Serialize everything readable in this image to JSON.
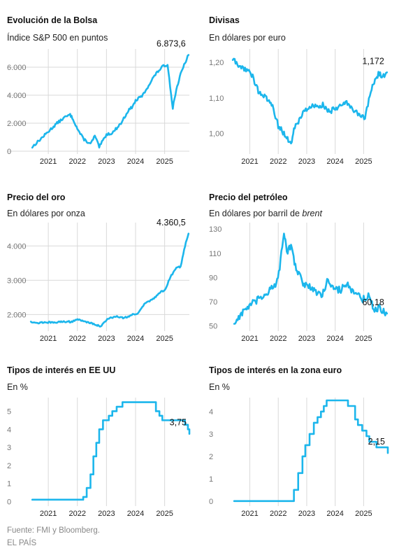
{
  "footer": {
    "source": "Fuente: FMI y Bloomberg.",
    "credit": "EL PAÍS"
  },
  "chart_data": [
    {
      "type": "line",
      "title": "Evolución de la Bolsa",
      "subtitle": "Índice S&P 500 en puntos",
      "ylim": [
        0,
        7100
      ],
      "yticks": [
        0,
        2000,
        4000,
        6000
      ],
      "ytick_labels": [
        "0",
        "2.000",
        "4.000",
        "6.000"
      ],
      "x_ticks": [
        2021,
        2022,
        2023,
        2024,
        2025
      ],
      "x_range": [
        2020.3,
        2025.85
      ],
      "last_label": "6.873,6",
      "noise": 90,
      "grid": true,
      "series": [
        {
          "x": [
            2020.45,
            2020.7,
            2021.0,
            2021.3,
            2021.55,
            2021.75,
            2021.85,
            2022.0,
            2022.2,
            2022.45,
            2022.6,
            2022.75,
            2023.0,
            2023.2,
            2023.5,
            2023.75,
            2023.9,
            2024.0,
            2024.25,
            2024.45,
            2024.65,
            2024.9,
            2025.1,
            2025.28,
            2025.4,
            2025.55,
            2025.7,
            2025.82
          ],
          "y": [
            300,
            800,
            1400,
            2000,
            2400,
            2600,
            2300,
            1600,
            900,
            500,
            1100,
            300,
            1200,
            1300,
            2000,
            2900,
            3200,
            3600,
            4000,
            4700,
            5400,
            6000,
            6200,
            3100,
            4400,
            5500,
            6300,
            6873.6
          ]
        }
      ]
    },
    {
      "type": "line",
      "title": "Divisas",
      "subtitle": "En dólares por euro",
      "ylim": [
        0.95,
        1.23
      ],
      "yticks": [
        1.0,
        1.1,
        1.2
      ],
      "ytick_labels": [
        "1,00",
        "1,10",
        "1,20"
      ],
      "x_ticks": [
        2021,
        2022,
        2023,
        2024,
        2025
      ],
      "x_range": [
        2020.3,
        2025.85
      ],
      "last_label": "1,172",
      "noise": 0.008,
      "grid": false,
      "series": [
        {
          "x": [
            2020.4,
            2020.6,
            2020.9,
            2021.1,
            2021.3,
            2021.55,
            2021.8,
            2022.0,
            2022.2,
            2022.45,
            2022.55,
            2022.8,
            2023.0,
            2023.3,
            2023.6,
            2023.8,
            2024.0,
            2024.3,
            2024.5,
            2024.75,
            2024.85,
            2025.05,
            2025.25,
            2025.4,
            2025.55,
            2025.7,
            2025.82
          ],
          "y": [
            1.21,
            1.19,
            1.18,
            1.16,
            1.12,
            1.1,
            1.08,
            1.02,
            1.0,
            0.97,
            1.01,
            1.05,
            1.07,
            1.08,
            1.08,
            1.06,
            1.07,
            1.09,
            1.08,
            1.06,
            1.05,
            1.04,
            1.12,
            1.15,
            1.17,
            1.16,
            1.172
          ]
        }
      ]
    },
    {
      "type": "line",
      "title": "Precio del oro",
      "subtitle": "En dólares por onza",
      "ylim": [
        1600,
        4600
      ],
      "yticks": [
        2000,
        3000,
        4000
      ],
      "ytick_labels": [
        "2.000",
        "3.000",
        "4.000"
      ],
      "x_ticks": [
        2021,
        2022,
        2023,
        2024,
        2025
      ],
      "x_range": [
        2020.3,
        2025.85
      ],
      "last_label": "4.360,5",
      "noise": 22,
      "grid": true,
      "series": [
        {
          "x": [
            2020.4,
            2020.6,
            2020.9,
            2021.2,
            2021.5,
            2021.8,
            2022.0,
            2022.2,
            2022.5,
            2022.8,
            2023.0,
            2023.3,
            2023.6,
            2023.9,
            2024.1,
            2024.3,
            2024.6,
            2024.85,
            2025.0,
            2025.2,
            2025.4,
            2025.55,
            2025.7,
            2025.82
          ],
          "y": [
            1800,
            1750,
            1780,
            1760,
            1800,
            1790,
            1870,
            1800,
            1750,
            1650,
            1850,
            1950,
            1900,
            2000,
            2050,
            2300,
            2450,
            2650,
            2700,
            3100,
            3350,
            3400,
            4000,
            4360.5
          ]
        }
      ]
    },
    {
      "type": "line",
      "title": "Precio del petróleo",
      "subtitle": "En dólares por barril de",
      "subtitle_em": "brent",
      "ylim": [
        48,
        133
      ],
      "yticks": [
        50,
        70,
        90,
        110,
        130
      ],
      "ytick_labels": [
        "50",
        "70",
        "90",
        "110",
        "130"
      ],
      "x_ticks": [
        2021,
        2022,
        2023,
        2024,
        2025
      ],
      "x_range": [
        2020.3,
        2025.85
      ],
      "last_label": "60,18",
      "noise": 3,
      "grid": false,
      "series": [
        {
          "x": [
            2020.45,
            2020.7,
            2020.95,
            2021.2,
            2021.45,
            2021.7,
            2021.9,
            2022.05,
            2022.2,
            2022.3,
            2022.45,
            2022.6,
            2022.75,
            2022.9,
            2023.1,
            2023.35,
            2023.55,
            2023.75,
            2023.95,
            2024.2,
            2024.35,
            2024.6,
            2024.85,
            2025.0,
            2025.2,
            2025.35,
            2025.55,
            2025.7,
            2025.82
          ],
          "y": [
            52,
            60,
            66,
            70,
            74,
            80,
            82,
            98,
            126,
            112,
            115,
            100,
            92,
            84,
            82,
            78,
            75,
            90,
            80,
            80,
            86,
            78,
            74,
            72,
            76,
            62,
            66,
            62,
            60.18
          ]
        }
      ]
    },
    {
      "type": "line",
      "title": "Tipos de interés en EE UU",
      "subtitle": "En %",
      "ylim": [
        -0.1,
        5.6
      ],
      "yticks": [
        0,
        1,
        2,
        3,
        4,
        5
      ],
      "ytick_labels": [
        "0",
        "1",
        "2",
        "3",
        "4",
        "5"
      ],
      "x_ticks": [
        2021,
        2022,
        2023,
        2024,
        2025
      ],
      "x_range": [
        2020.3,
        2025.85
      ],
      "last_label": "3,75",
      "step": true,
      "noise": 0,
      "grid": false,
      "series": [
        {
          "x": [
            2020.45,
            2022.2,
            2022.32,
            2022.45,
            2022.55,
            2022.65,
            2022.75,
            2022.88,
            2023.08,
            2023.2,
            2023.35,
            2023.55,
            2024.7,
            2024.82,
            2024.92,
            2025.7,
            2025.8,
            2025.85
          ],
          "y": [
            0.1,
            0.25,
            0.75,
            1.5,
            2.5,
            3.25,
            4.0,
            4.5,
            4.75,
            5.0,
            5.25,
            5.5,
            5.0,
            4.75,
            4.5,
            4.25,
            4.0,
            3.75
          ]
        }
      ]
    },
    {
      "type": "line",
      "title": "Tipos de interés en la zona euro",
      "subtitle": "En %",
      "ylim": [
        -0.1,
        4.5
      ],
      "yticks": [
        0,
        1,
        2,
        3,
        4
      ],
      "ytick_labels": [
        "0",
        "1",
        "2",
        "3",
        "4"
      ],
      "x_ticks": [
        2021,
        2022,
        2023,
        2024,
        2025
      ],
      "x_range": [
        2020.3,
        2025.85
      ],
      "last_label": "2,15",
      "step": true,
      "noise": 0,
      "grid": false,
      "series": [
        {
          "x": [
            2020.45,
            2022.55,
            2022.7,
            2022.85,
            2022.95,
            2023.1,
            2023.25,
            2023.38,
            2023.5,
            2023.6,
            2023.7,
            2024.45,
            2024.7,
            2024.8,
            2024.95,
            2025.1,
            2025.2,
            2025.45,
            2025.85
          ],
          "y": [
            0.0,
            0.5,
            1.25,
            2.0,
            2.5,
            3.0,
            3.5,
            3.75,
            4.0,
            4.25,
            4.5,
            4.25,
            3.65,
            3.4,
            3.15,
            2.9,
            2.65,
            2.4,
            2.15
          ]
        }
      ]
    }
  ]
}
